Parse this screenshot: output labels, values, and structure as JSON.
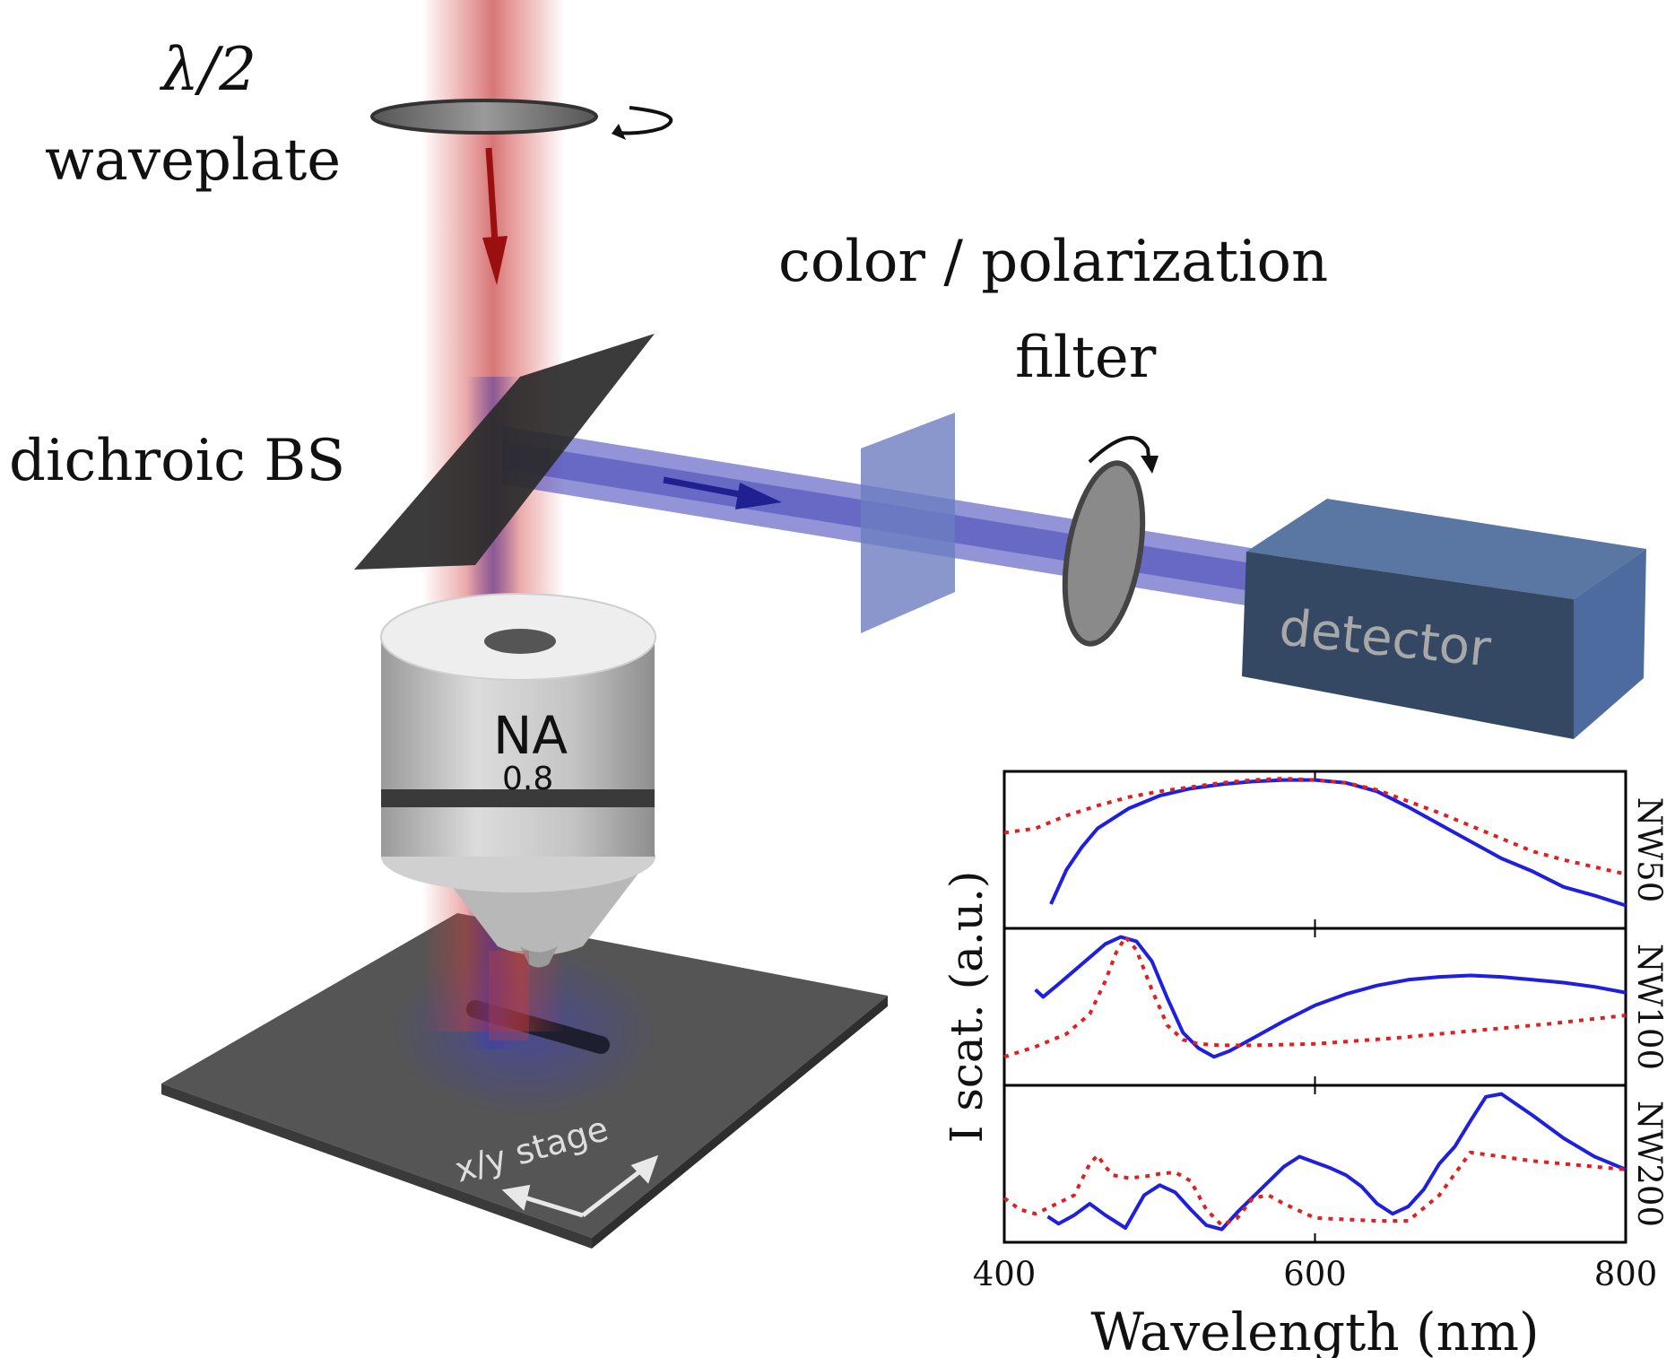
{
  "labels": {
    "waveplate_symbol": "λ/2",
    "waveplate": "waveplate",
    "filter_line1": "color / polarization",
    "filter_line2": "filter",
    "beamsplitter": "dichroic BS",
    "detector": "detector",
    "objective_na": "NA",
    "objective_value": "0.8",
    "stage": "x/y stage"
  },
  "colors": {
    "laser": "#d23a3a",
    "scatter_beam": "#3b3bb8",
    "detector": "#47628a",
    "measured": "#1f1fe0",
    "simulated": "#e02020"
  },
  "chart_data": {
    "type": "line",
    "xlabel": "Wavelength (nm)",
    "ylabel": "I scat. (a.u.)",
    "xlim": [
      400,
      800
    ],
    "xticks": [
      400,
      600,
      800
    ],
    "panels": [
      {
        "name": "NW50",
        "ylim": [
          0,
          1
        ],
        "series": [
          {
            "style": "solid",
            "x": [
              430,
              440,
              450,
              460,
              480,
              500,
              520,
              540,
              560,
              580,
              600,
              620,
              640,
              660,
              680,
              700,
              720,
              740,
              760,
              780,
              800
            ],
            "y": [
              0.12,
              0.36,
              0.52,
              0.65,
              0.79,
              0.88,
              0.93,
              0.96,
              0.98,
              0.99,
              0.99,
              0.97,
              0.91,
              0.8,
              0.68,
              0.56,
              0.44,
              0.35,
              0.24,
              0.18,
              0.11
            ]
          },
          {
            "style": "dotted",
            "x": [
              400,
              420,
              440,
              460,
              480,
              500,
              520,
              540,
              560,
              580,
              600,
              620,
              640,
              660,
              680,
              700,
              720,
              740,
              760,
              780,
              800
            ],
            "y": [
              0.62,
              0.65,
              0.74,
              0.81,
              0.87,
              0.91,
              0.94,
              0.97,
              0.99,
              1.0,
              0.99,
              0.97,
              0.92,
              0.84,
              0.76,
              0.67,
              0.58,
              0.49,
              0.43,
              0.38,
              0.33
            ]
          }
        ]
      },
      {
        "name": "NW100",
        "ylim": [
          0,
          1
        ],
        "series": [
          {
            "style": "solid",
            "x": [
              420,
              425,
              435,
              450,
              465,
              475,
              485,
              495,
              505,
              515,
              525,
              535,
              545,
              560,
              580,
              600,
              620,
              640,
              660,
              680,
              700,
              720,
              740,
              760,
              780,
              800
            ],
            "y": [
              0.62,
              0.57,
              0.66,
              0.8,
              0.94,
              0.99,
              0.96,
              0.82,
              0.56,
              0.32,
              0.21,
              0.15,
              0.19,
              0.28,
              0.4,
              0.51,
              0.59,
              0.65,
              0.69,
              0.71,
              0.72,
              0.71,
              0.69,
              0.67,
              0.64,
              0.6
            ]
          },
          {
            "style": "dotted",
            "x": [
              400,
              420,
              440,
              455,
              465,
              472,
              478,
              485,
              495,
              505,
              515,
              525,
              540,
              560,
              600,
              650,
              700,
              750,
              800
            ],
            "y": [
              0.15,
              0.22,
              0.31,
              0.45,
              0.68,
              0.88,
              0.99,
              0.9,
              0.62,
              0.37,
              0.27,
              0.24,
              0.23,
              0.23,
              0.24,
              0.28,
              0.33,
              0.38,
              0.44
            ]
          }
        ]
      },
      {
        "name": "NW200",
        "ylim": [
          0,
          1
        ],
        "series": [
          {
            "style": "solid",
            "x": [
              428,
              435,
              445,
              455,
              465,
              478,
              490,
              500,
              510,
              520,
              530,
              540,
              550,
              565,
              580,
              590,
              600,
              610,
              620,
              630,
              640,
              650,
              660,
              670,
              680,
              690,
              700,
              710,
              720,
              740,
              760,
              780,
              800
            ],
            "y": [
              0.13,
              0.08,
              0.14,
              0.22,
              0.14,
              0.05,
              0.28,
              0.35,
              0.3,
              0.18,
              0.07,
              0.04,
              0.16,
              0.32,
              0.48,
              0.55,
              0.51,
              0.47,
              0.42,
              0.34,
              0.22,
              0.15,
              0.2,
              0.32,
              0.5,
              0.62,
              0.8,
              0.97,
              0.99,
              0.84,
              0.68,
              0.55,
              0.46
            ]
          },
          {
            "style": "dotted",
            "x": [
              400,
              410,
              420,
              430,
              445,
              455,
              460,
              465,
              470,
              480,
              490,
              500,
              510,
              520,
              530,
              540,
              550,
              560,
              570,
              580,
              590,
              600,
              620,
              640,
              660,
              680,
              700,
              720,
              740,
              760,
              780,
              800
            ],
            "y": [
              0.26,
              0.18,
              0.15,
              0.2,
              0.28,
              0.5,
              0.56,
              0.48,
              0.42,
              0.4,
              0.41,
              0.43,
              0.44,
              0.38,
              0.18,
              0.07,
              0.12,
              0.26,
              0.28,
              0.22,
              0.17,
              0.12,
              0.11,
              0.1,
              0.1,
              0.28,
              0.58,
              0.55,
              0.52,
              0.5,
              0.48,
              0.46
            ]
          }
        ]
      }
    ]
  }
}
